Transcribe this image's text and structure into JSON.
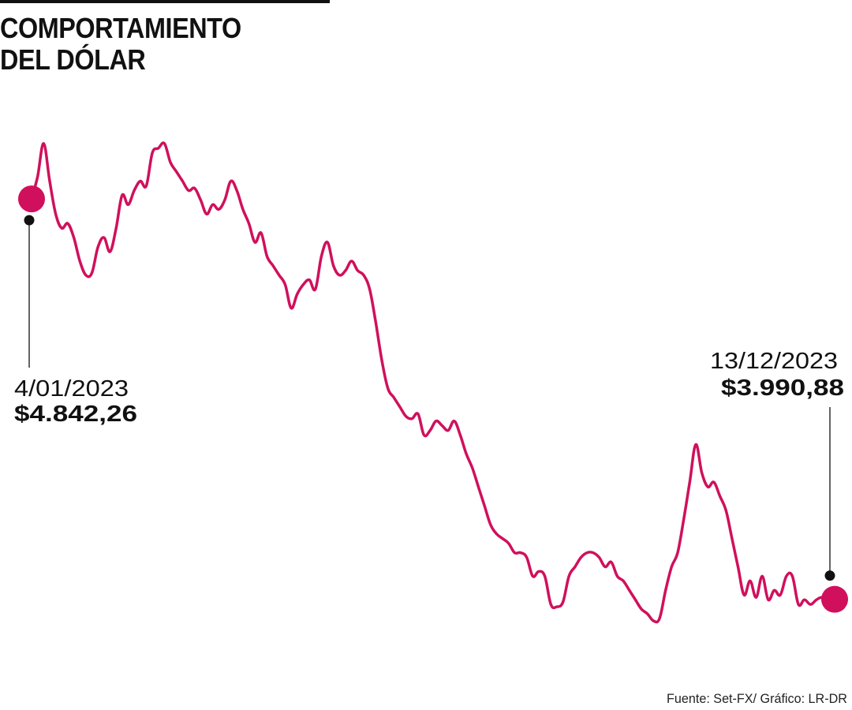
{
  "title_lines": [
    "COMPORTAMIENTO",
    "DEL DÓLAR"
  ],
  "source": "Fuente: Set-FX/ Gráfico: LR-DR",
  "colors": {
    "line": "#d0105c",
    "marker": "#d0105c",
    "text": "#111111"
  },
  "chart_data": {
    "type": "line",
    "title": "COMPORTAMIENTO DEL DÓLAR",
    "series": [
      {
        "values": [
          4842.26,
          4890,
          4960,
          4880,
          4810,
          4780,
          4790,
          4760,
          4710,
          4680,
          4685,
          4740,
          4760,
          4730,
          4780,
          4850,
          4830,
          4860,
          4880,
          4870,
          4940,
          4950,
          4960,
          4920,
          4900,
          4880,
          4860,
          4865,
          4840,
          4810,
          4830,
          4820,
          4840,
          4880,
          4860,
          4820,
          4790,
          4750,
          4770,
          4720,
          4700,
          4680,
          4660,
          4610,
          4640,
          4660,
          4670,
          4650,
          4720,
          4750,
          4700,
          4680,
          4690,
          4710,
          4690,
          4680,
          4650,
          4580,
          4500,
          4440,
          4420,
          4400,
          4380,
          4375,
          4385,
          4340,
          4350,
          4370,
          4360,
          4350,
          4370,
          4340,
          4300,
          4270,
          4230,
          4190,
          4150,
          4130,
          4120,
          4110,
          4090,
          4090,
          4080,
          4040,
          4050,
          4040,
          3980,
          3975,
          3985,
          4040,
          4060,
          4080,
          4090,
          4090,
          4080,
          4060,
          4070,
          4040,
          4030,
          4010,
          3990,
          3970,
          3960,
          3945,
          3950,
          4010,
          4060,
          4090,
          4160,
          4240,
          4320,
          4260,
          4230,
          4240,
          4210,
          4180,
          4120,
          4060,
          4000,
          4030,
          3995,
          4040,
          3990,
          4010,
          4000,
          4040,
          4040,
          3980,
          3990,
          3980,
          3990,
          3995,
          3985,
          3990.88
        ]
      }
    ],
    "annotations": [
      {
        "date": "4/01/2023",
        "value": "$4.842,26"
      },
      {
        "date": "13/12/2023",
        "value": "$3.990,88"
      }
    ],
    "ylim": [
      3940,
      4980
    ],
    "grid": false,
    "legend": "none"
  }
}
